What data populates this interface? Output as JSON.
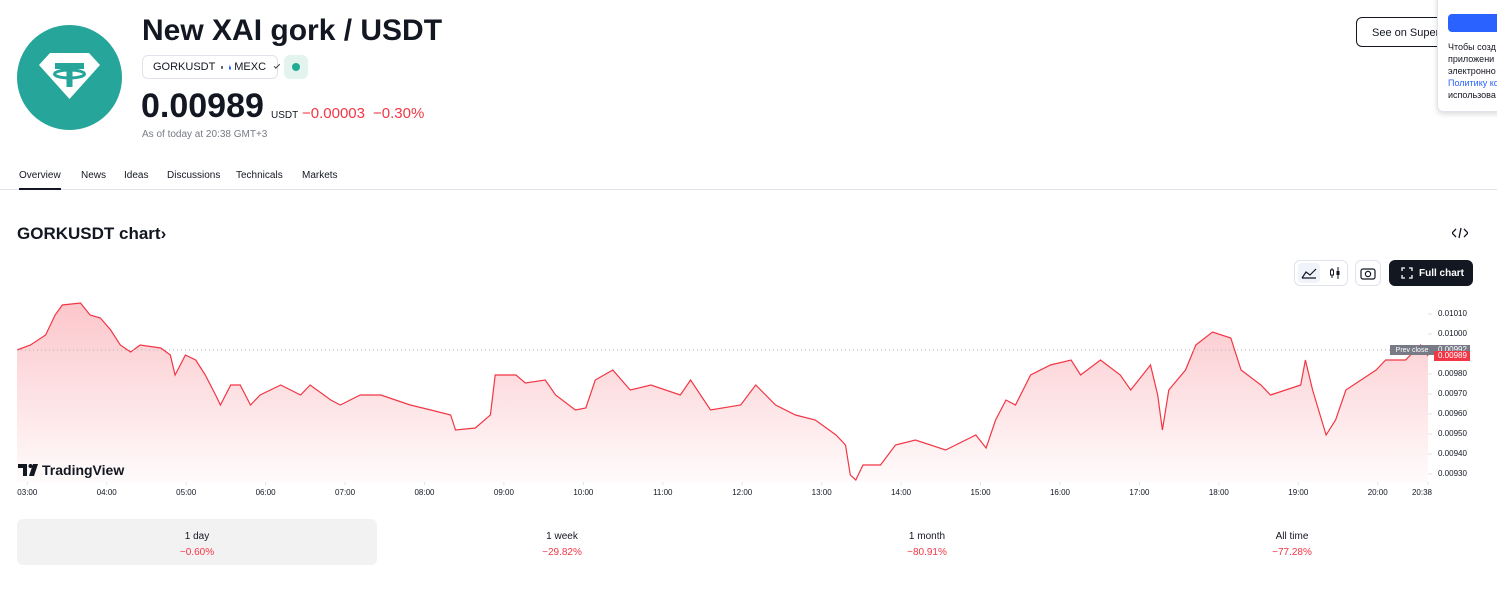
{
  "header": {
    "title": "New XAI gork / USDT",
    "symbol": "GORKUSDT",
    "exchange": "MEXC",
    "price": "0.00989",
    "currency": "USDT",
    "change": "−0.00003",
    "change_percent": "−0.30%",
    "as_of": "As of today at 20:38 GMT+3",
    "action": "See on Superch"
  },
  "popup": {
    "lines": [
      "Чтобы созд",
      "приложени",
      "электронно"
    ],
    "link": "Политику ко",
    "last": "использова"
  },
  "tabs": [
    "Overview",
    "News",
    "Ideas",
    "Discussions",
    "Technicals",
    "Markets"
  ],
  "section": {
    "title": "GORKUSDT chart›",
    "full_chart": "Full chart",
    "brand": "TradingView"
  },
  "periods": [
    {
      "label": "1 day",
      "change": "−0.60%"
    },
    {
      "label": "1 week",
      "change": "−29.82%"
    },
    {
      "label": "1 month",
      "change": "−80.91%"
    },
    {
      "label": "All time",
      "change": "−77.28%"
    }
  ],
  "chart_data": {
    "type": "area",
    "x": [
      2.87,
      3.04,
      3.23,
      3.35,
      3.44,
      3.67,
      3.79,
      3.92,
      4.05,
      4.17,
      4.3,
      4.42,
      4.68,
      4.8,
      4.86,
      4.99,
      5.12,
      5.24,
      5.37,
      5.43,
      5.56,
      5.68,
      5.81,
      5.93,
      6.19,
      6.44,
      6.56,
      6.82,
      6.94,
      7.19,
      7.45,
      7.82,
      8.08,
      8.33,
      8.39,
      8.64,
      8.83,
      8.89,
      9.15,
      9.27,
      9.52,
      9.65,
      9.9,
      10.03,
      10.15,
      10.37,
      10.59,
      10.85,
      11.22,
      11.35,
      11.6,
      11.98,
      12.17,
      12.42,
      12.67,
      12.92,
      13.18,
      13.3,
      13.36,
      13.43,
      13.52,
      13.74,
      13.93,
      14.18,
      14.56,
      14.94,
      15.07,
      15.19,
      15.32,
      15.44,
      15.63,
      15.88,
      16.14,
      16.26,
      16.51,
      16.76,
      16.89,
      17.14,
      17.23,
      17.29,
      17.37,
      17.58,
      17.71,
      17.92,
      18.15,
      18.28,
      18.53,
      18.65,
      19.03,
      19.09,
      19.18,
      19.35,
      19.47,
      19.6,
      19.98,
      20.1,
      20.35,
      20.54,
      20.633
    ],
    "series": [
      {
        "name": "GORKUSDT",
        "color": "#f23645",
        "values": [
          0.00992,
          0.009945,
          0.009995,
          0.010095,
          0.010145,
          0.010155,
          0.010095,
          0.01008,
          0.01002,
          0.009945,
          0.00991,
          0.009945,
          0.00993,
          0.009895,
          0.009795,
          0.009895,
          0.00987,
          0.009795,
          0.009695,
          0.009645,
          0.009745,
          0.009745,
          0.009645,
          0.009695,
          0.009745,
          0.009695,
          0.009745,
          0.00967,
          0.009645,
          0.009695,
          0.009695,
          0.009645,
          0.00962,
          0.009595,
          0.00952,
          0.00953,
          0.009595,
          0.009795,
          0.009795,
          0.009755,
          0.00977,
          0.009695,
          0.00962,
          0.00963,
          0.00977,
          0.00982,
          0.00972,
          0.009745,
          0.009695,
          0.00977,
          0.00962,
          0.009645,
          0.009745,
          0.009645,
          0.009595,
          0.00957,
          0.009495,
          0.009445,
          0.009295,
          0.00927,
          0.009345,
          0.009345,
          0.009445,
          0.00947,
          0.00942,
          0.009495,
          0.00943,
          0.00957,
          0.00967,
          0.009645,
          0.009795,
          0.009845,
          0.00987,
          0.009795,
          0.00987,
          0.009795,
          0.00972,
          0.009845,
          0.009695,
          0.00952,
          0.00972,
          0.00982,
          0.009945,
          0.01001,
          0.00998,
          0.00982,
          0.009745,
          0.009695,
          0.009745,
          0.00987,
          0.00972,
          0.009495,
          0.00957,
          0.00972,
          0.00982,
          0.00987,
          0.00987,
          0.009945,
          0.00989
        ]
      }
    ],
    "xlim": [
      2.87,
      20.633
    ],
    "xticks": [
      {
        "value": 3,
        "label": "03:00"
      },
      {
        "value": 4,
        "label": "04:00"
      },
      {
        "value": 5,
        "label": "05:00"
      },
      {
        "value": 6,
        "label": "06:00"
      },
      {
        "value": 7,
        "label": "07:00"
      },
      {
        "value": 8,
        "label": "08:00"
      },
      {
        "value": 9,
        "label": "09:00"
      },
      {
        "value": 10,
        "label": "10:00"
      },
      {
        "value": 11,
        "label": "11:00"
      },
      {
        "value": 12,
        "label": "12:00"
      },
      {
        "value": 13,
        "label": "13:00"
      },
      {
        "value": 14,
        "label": "14:00"
      },
      {
        "value": 15,
        "label": "15:00"
      },
      {
        "value": 16,
        "label": "16:00"
      },
      {
        "value": 17,
        "label": "17:00"
      },
      {
        "value": 18,
        "label": "18:00"
      },
      {
        "value": 19,
        "label": "19:00"
      },
      {
        "value": 20,
        "label": "20:00"
      },
      {
        "value": 20.633,
        "label": "20:38"
      }
    ],
    "ylim": [
      0.00926,
      0.010195
    ],
    "yticks": [
      {
        "value": 0.0093,
        "label": "0.00930"
      },
      {
        "value": 0.0094,
        "label": "0.00940"
      },
      {
        "value": 0.0095,
        "label": "0.00950"
      },
      {
        "value": 0.0096,
        "label": "0.00960"
      },
      {
        "value": 0.0097,
        "label": "0.00970"
      },
      {
        "value": 0.0098,
        "label": "0.00980"
      },
      {
        "value": 0.0099,
        "label": "0.00990"
      },
      {
        "value": 0.01,
        "label": "0.01000"
      },
      {
        "value": 0.0101,
        "label": "0.01010"
      }
    ],
    "prev_close": {
      "label": "Prev close",
      "value": 0.00992,
      "value_label": "0.00992"
    },
    "last": {
      "value": 0.00989,
      "value_label": "0.00989"
    }
  }
}
